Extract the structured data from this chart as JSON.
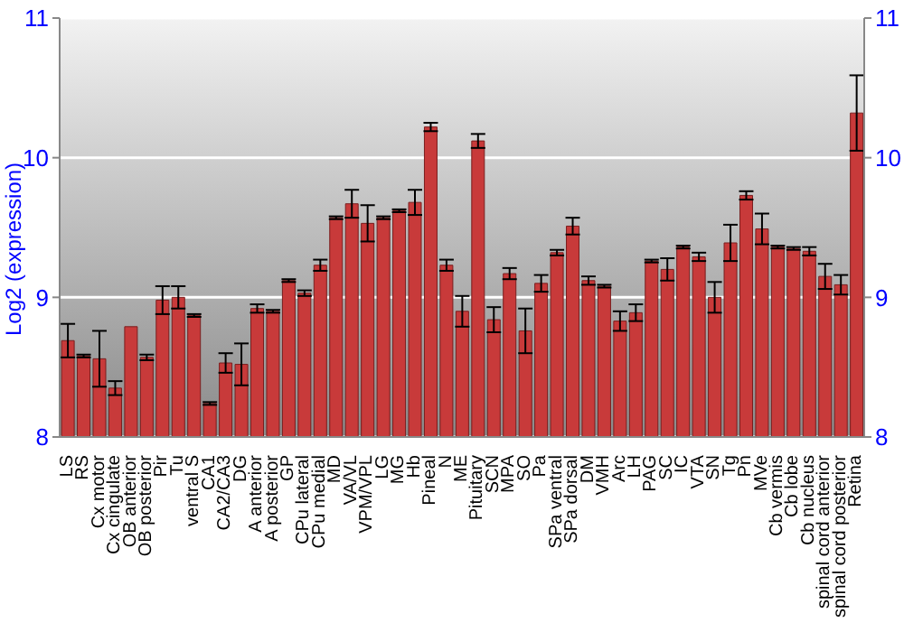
{
  "chart_data": {
    "type": "bar",
    "ylabel": "Log2 (expression)",
    "categories": [
      "LS",
      "RS",
      "Cx motor",
      "Cx cingulate",
      "OB anterior",
      "OB posterior",
      "Pir",
      "Tu",
      "ventral S",
      "CA1",
      "CA2/CA3",
      "DG",
      "A anterior",
      "A posterior",
      "GP",
      "CPu lateral",
      "CPu medial",
      "MD",
      "VA/VL",
      "VPM/VPL",
      "LG",
      "MG",
      "Hb",
      "Pineal",
      "N",
      "ME",
      "Pituitary",
      "SCN",
      "MPA",
      "SO",
      "Pa",
      "SPa ventral",
      "SPa dorsal",
      "DM",
      "VMH",
      "Arc",
      "LH",
      "PAG",
      "SC",
      "IC",
      "VTA",
      "SN",
      "Tg",
      "Pn",
      "MVe",
      "Cb vermis",
      "Cb lobe",
      "Cb nucleus",
      "spinal cord anterior",
      "spinal cord posterior",
      "Retina"
    ],
    "values": [
      8.69,
      8.58,
      8.56,
      8.35,
      8.79,
      8.57,
      8.98,
      9.0,
      8.87,
      8.24,
      8.53,
      8.52,
      8.92,
      8.9,
      9.12,
      9.03,
      9.23,
      9.57,
      9.67,
      9.53,
      9.57,
      9.62,
      9.68,
      10.22,
      9.23,
      8.9,
      10.12,
      8.84,
      9.17,
      8.76,
      9.1,
      9.32,
      9.51,
      9.12,
      9.08,
      8.83,
      8.89,
      9.26,
      9.2,
      9.36,
      9.29,
      9.0,
      9.39,
      9.73,
      9.49,
      9.36,
      9.35,
      9.33,
      9.15,
      9.09,
      10.32
    ],
    "errors": [
      0.12,
      0.01,
      0.2,
      0.05,
      null,
      0.02,
      0.1,
      0.08,
      0.01,
      0.01,
      0.07,
      0.15,
      0.03,
      0.01,
      0.01,
      0.02,
      0.04,
      0.01,
      0.1,
      0.13,
      0.01,
      0.01,
      0.09,
      0.03,
      0.04,
      0.11,
      0.05,
      0.09,
      0.04,
      0.16,
      0.06,
      0.02,
      0.06,
      0.03,
      0.01,
      0.07,
      0.06,
      0.01,
      0.08,
      0.01,
      0.03,
      0.11,
      0.13,
      0.03,
      0.11,
      0.01,
      0.01,
      0.03,
      0.09,
      0.07,
      0.27
    ],
    "color": "#c83a3a",
    "ylim": [
      8,
      11
    ],
    "yticks": [
      8,
      9,
      10,
      11
    ],
    "y2lim": [
      8,
      11
    ],
    "y2ticks": [
      8,
      9,
      10,
      11
    ],
    "grid": "y",
    "legend": false
  }
}
